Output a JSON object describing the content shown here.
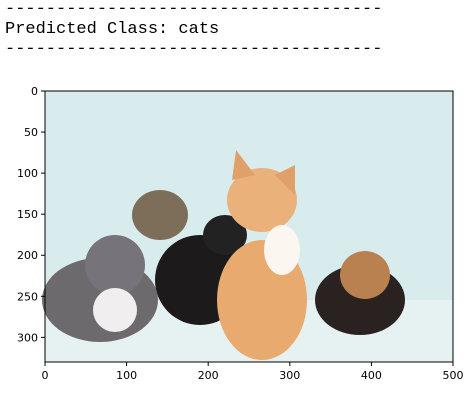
{
  "output": {
    "lines": [
      "-------------------------------------",
      "Predicted Class: cats",
      "-------------------------------------"
    ]
  },
  "chart_data": {
    "type": "image",
    "xlim": [
      0,
      500
    ],
    "ylim": [
      330,
      0
    ],
    "xticks": [
      0,
      100,
      200,
      300,
      400,
      500
    ],
    "yticks": [
      0,
      50,
      100,
      150,
      200,
      250,
      300
    ]
  }
}
